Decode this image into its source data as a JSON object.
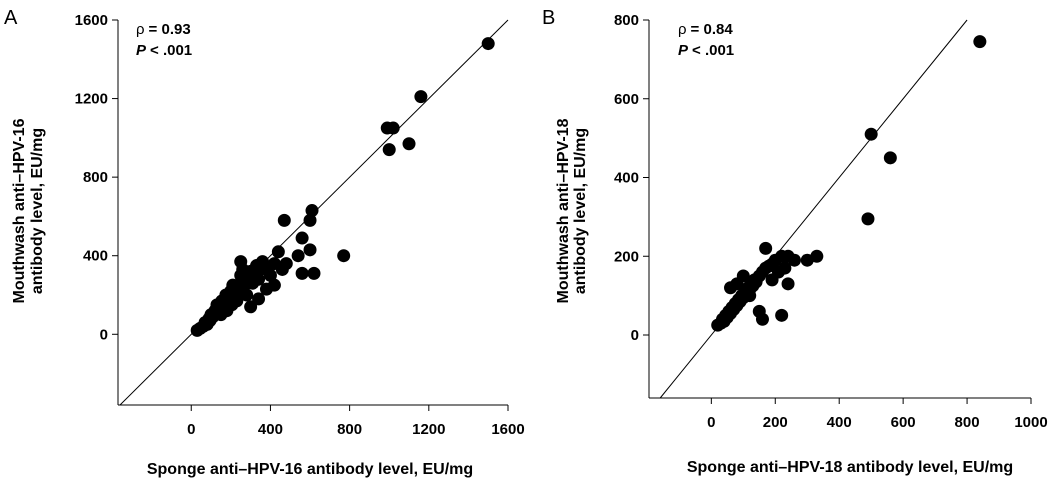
{
  "chart_data": [
    {
      "type": "scatter",
      "panel_label": "A",
      "stats": {
        "rho_symbol": "ρ",
        "rho_value": "= 0.93",
        "p_symbol": "P",
        "p_value": "< .001"
      },
      "xlabel": "Sponge anti–HPV-16 antibody level, EU/mg",
      "ylabel_line1": "Mouthwash anti–HPV-16",
      "ylabel_line2": "antibody level, EU/mg",
      "xlim": [
        -370,
        1600
      ],
      "ylim": [
        -360,
        1600
      ],
      "xticks": [
        0,
        400,
        800,
        1200,
        1600
      ],
      "yticks": [
        0,
        400,
        800,
        1200,
        1600
      ],
      "reference_line": "y = x",
      "x": [
        30,
        45,
        60,
        70,
        80,
        90,
        95,
        100,
        110,
        120,
        125,
        130,
        140,
        150,
        155,
        160,
        170,
        175,
        180,
        190,
        200,
        205,
        210,
        220,
        225,
        230,
        240,
        250,
        255,
        260,
        270,
        280,
        290,
        300,
        310,
        320,
        330,
        340,
        350,
        360,
        380,
        400,
        420,
        440,
        460,
        480,
        250,
        300,
        340,
        380,
        420,
        470,
        540,
        560,
        600,
        620,
        560,
        600,
        610,
        770,
        1000,
        990,
        1020,
        1100,
        1160,
        1500
      ],
      "y": [
        20,
        30,
        40,
        60,
        50,
        80,
        70,
        100,
        90,
        120,
        110,
        150,
        130,
        100,
        170,
        140,
        160,
        200,
        120,
        180,
        220,
        150,
        250,
        190,
        230,
        170,
        210,
        300,
        270,
        330,
        250,
        200,
        280,
        320,
        260,
        300,
        350,
        280,
        330,
        370,
        340,
        300,
        360,
        420,
        330,
        360,
        370,
        140,
        180,
        230,
        250,
        580,
        400,
        490,
        430,
        310,
        310,
        580,
        630,
        400,
        940,
        1050,
        1050,
        970,
        1210,
        1480
      ]
    },
    {
      "type": "scatter",
      "panel_label": "B",
      "stats": {
        "rho_symbol": "ρ",
        "rho_value": "= 0.84",
        "p_symbol": "P",
        "p_value": "< .001"
      },
      "xlabel": "Sponge anti–HPV-18 antibody level, EU/mg",
      "ylabel_line1": "Mouthwash anti–HPV-18",
      "ylabel_line2": "antibody level, EU/mg",
      "xlim": [
        -195,
        1000
      ],
      "ylim": [
        -160,
        800
      ],
      "xticks": [
        0,
        200,
        400,
        600,
        800,
        1000
      ],
      "yticks": [
        0,
        200,
        400,
        600,
        800
      ],
      "reference_line": "y = x",
      "x": [
        20,
        30,
        35,
        40,
        45,
        50,
        55,
        60,
        65,
        70,
        75,
        80,
        85,
        90,
        95,
        100,
        105,
        110,
        115,
        120,
        125,
        130,
        135,
        140,
        150,
        160,
        170,
        180,
        190,
        200,
        210,
        220,
        230,
        240,
        60,
        80,
        100,
        120,
        150,
        160,
        170,
        190,
        220,
        240,
        260,
        300,
        330,
        490,
        500,
        560,
        840
      ],
      "y": [
        25,
        30,
        40,
        35,
        50,
        45,
        60,
        55,
        70,
        65,
        80,
        75,
        90,
        85,
        100,
        95,
        110,
        105,
        120,
        115,
        130,
        125,
        140,
        135,
        150,
        160,
        170,
        175,
        180,
        190,
        160,
        200,
        170,
        200,
        120,
        130,
        150,
        100,
        60,
        40,
        220,
        140,
        50,
        130,
        190,
        190,
        200,
        295,
        510,
        450,
        745
      ]
    }
  ]
}
